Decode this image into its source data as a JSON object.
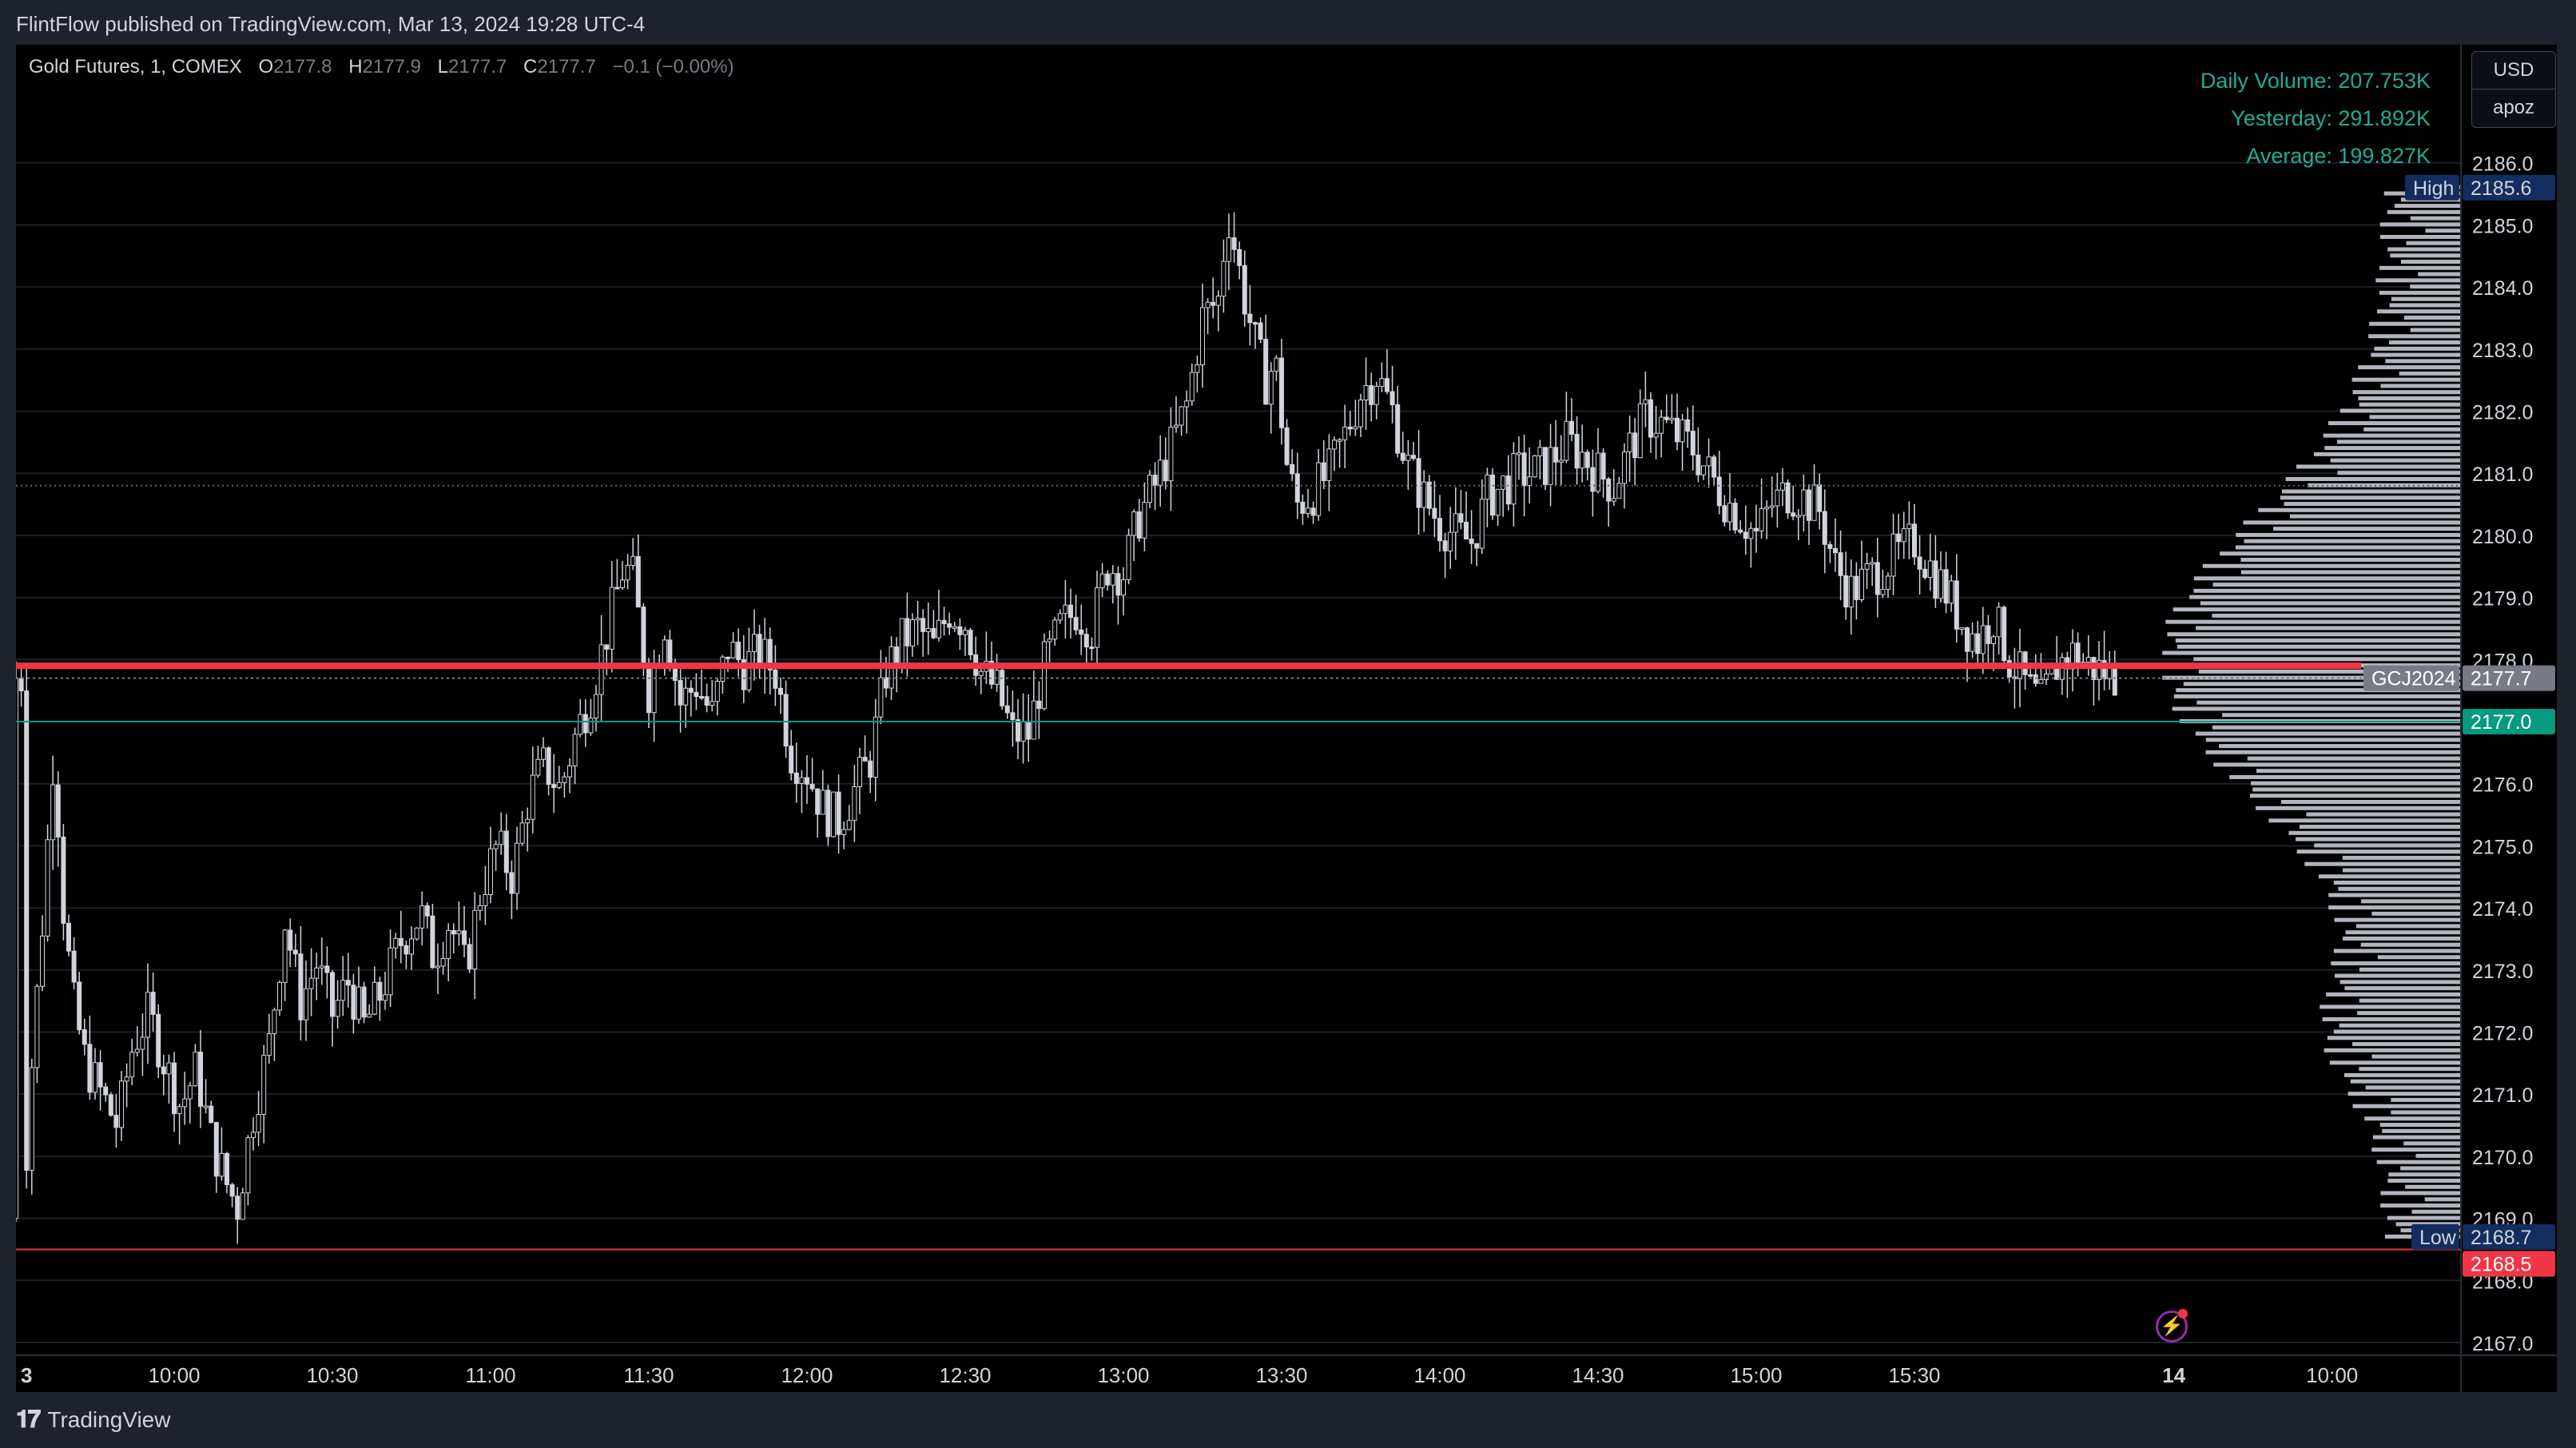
{
  "header": {
    "published_by": "FlintFlow published on TradingView.com, Mar 13, 2024 19:28 UTC-4"
  },
  "legend": {
    "symbol": "Gold Futures, 1, COMEX",
    "open_label": "O",
    "open": "2177.8",
    "high_label": "H",
    "high": "2177.9",
    "low_label": "L",
    "low": "2177.7",
    "close_label": "C",
    "close": "2177.7",
    "change": "−0.1 (−0.00%)"
  },
  "volume_stats": {
    "daily": "Daily Volume: 207.753K",
    "yesterday": "Yesterday: 291.892K",
    "average": "Average: 199.827K"
  },
  "currency_box": {
    "currency": "USD",
    "layout": "apoz"
  },
  "price_axis": {
    "ticks": [
      "2186.0",
      "2185.0",
      "2184.0",
      "2183.0",
      "2182.0",
      "2181.0",
      "2180.0",
      "2179.0",
      "2178.0",
      "2177.0",
      "2176.0",
      "2175.0",
      "2174.0",
      "2173.0",
      "2172.0",
      "2171.0",
      "2170.0",
      "2169.0",
      "2168.0",
      "2167.0"
    ]
  },
  "price_labels": {
    "high_tag": "High",
    "high_value": "2185.6",
    "symbol_tag": "GCJ2024",
    "last_value": "2177.7",
    "green_line_value": "2177.0",
    "low_tag": "Low",
    "low_value": "2168.7",
    "red_line_value": "2168.5"
  },
  "time_axis": {
    "labels": [
      "3",
      "10:00",
      "10:30",
      "11:00",
      "11:30",
      "12:00",
      "12:30",
      "13:00",
      "13:30",
      "14:00",
      "14:30",
      "15:00",
      "15:30",
      "14",
      "10:00"
    ]
  },
  "colors": {
    "background": "#000000",
    "candle": "#d1d4dc",
    "red_line": "#f23645",
    "green_line": "#089981",
    "volume_text": "#22ab94",
    "high_low_tag": "#132d5e",
    "profile_bar": "#b2b5be"
  },
  "footer": {
    "brand": "TradingView"
  },
  "chart_data": {
    "type": "candlestick",
    "symbol": "Gold Futures, 1, COMEX",
    "interval": "1 minute",
    "price_range": [
      2167.0,
      2186.0
    ],
    "session_high": 2185.6,
    "session_low": 2168.7,
    "last_price": 2177.7,
    "horizontal_levels": [
      {
        "price": 2177.9,
        "color": "red"
      },
      {
        "price": 2177.0,
        "color": "green"
      },
      {
        "price": 2168.5,
        "color": "red"
      },
      {
        "price": 2180.8,
        "color": "gray dotted"
      }
    ],
    "price_path": [
      [
        9.52,
        2169.0
      ],
      [
        9.55,
        2171.5
      ],
      [
        9.58,
        2173.5
      ],
      [
        9.62,
        2176.6
      ],
      [
        9.65,
        2174.0
      ],
      [
        9.68,
        2172.5
      ],
      [
        9.72,
        2171.5
      ],
      [
        9.77,
        2171.0
      ],
      [
        9.82,
        2170.5
      ],
      [
        9.87,
        2171.8
      ],
      [
        9.92,
        2172.3
      ],
      [
        9.97,
        2171.5
      ],
      [
        10.02,
        2170.8
      ],
      [
        10.07,
        2171.4
      ],
      [
        10.12,
        2170.2
      ],
      [
        10.17,
        2169.5
      ],
      [
        10.2,
        2169.2
      ],
      [
        10.25,
        2170.7
      ],
      [
        10.3,
        2171.8
      ],
      [
        10.35,
        2173.8
      ],
      [
        10.4,
        2172.5
      ],
      [
        10.45,
        2173.1
      ],
      [
        10.5,
        2172.3
      ],
      [
        10.55,
        2172.8
      ],
      [
        10.6,
        2172.1
      ],
      [
        10.65,
        2172.6
      ],
      [
        10.72,
        2173.5
      ],
      [
        10.78,
        2173.9
      ],
      [
        10.82,
        2173.2
      ],
      [
        10.87,
        2173.8
      ],
      [
        10.92,
        2173.0
      ],
      [
        10.97,
        2174.3
      ],
      [
        11.02,
        2175.0
      ],
      [
        11.07,
        2174.5
      ],
      [
        11.12,
        2175.8
      ],
      [
        11.17,
        2176.3
      ],
      [
        11.22,
        2175.9
      ],
      [
        11.27,
        2176.8
      ],
      [
        11.32,
        2177.5
      ],
      [
        11.37,
        2178.5
      ],
      [
        11.42,
        2179.5
      ],
      [
        11.45,
        2179.3
      ],
      [
        11.5,
        2177.5
      ],
      [
        11.55,
        2178.6
      ],
      [
        11.6,
        2177.3
      ],
      [
        11.65,
        2177.6
      ],
      [
        11.7,
        2177.1
      ],
      [
        11.75,
        2178.2
      ],
      [
        11.8,
        2177.9
      ],
      [
        11.85,
        2178.1
      ],
      [
        11.9,
        2177.8
      ],
      [
        11.95,
        2176.5
      ],
      [
        12.0,
        2176.2
      ],
      [
        12.05,
        2175.6
      ],
      [
        12.1,
        2175.4
      ],
      [
        12.15,
        2175.9
      ],
      [
        12.2,
        2176.4
      ],
      [
        12.25,
        2177.8
      ],
      [
        12.3,
        2178.3
      ],
      [
        12.35,
        2178.5
      ],
      [
        12.4,
        2178.2
      ],
      [
        12.45,
        2178.8
      ],
      [
        12.5,
        2178.6
      ],
      [
        12.55,
        2177.8
      ],
      [
        12.6,
        2177.5
      ],
      [
        12.65,
        2176.8
      ],
      [
        12.7,
        2176.8
      ],
      [
        12.75,
        2177.9
      ],
      [
        12.8,
        2178.5
      ],
      [
        12.85,
        2178.8
      ],
      [
        12.9,
        2178.5
      ],
      [
        12.95,
        2179.5
      ],
      [
        13.0,
        2179.4
      ],
      [
        13.05,
        2180.3
      ],
      [
        13.1,
        2180.8
      ],
      [
        13.15,
        2181.4
      ],
      [
        13.2,
        2182.1
      ],
      [
        13.25,
        2183.5
      ],
      [
        13.3,
        2183.8
      ],
      [
        13.33,
        2185.2
      ],
      [
        13.38,
        2183.9
      ],
      [
        13.42,
        2183.0
      ],
      [
        13.45,
        2182.5
      ],
      [
        13.48,
        2182.8
      ],
      [
        13.52,
        2181.0
      ],
      [
        13.55,
        2180.5
      ],
      [
        13.6,
        2180.7
      ],
      [
        13.65,
        2181.0
      ],
      [
        13.7,
        2181.6
      ],
      [
        13.75,
        2182.3
      ],
      [
        13.8,
        2182.6
      ],
      [
        13.85,
        2182.0
      ],
      [
        13.9,
        2181.1
      ],
      [
        13.95,
        2180.6
      ],
      [
        14.0,
        2180.2
      ],
      [
        14.05,
        2180.0
      ],
      [
        14.1,
        2179.9
      ],
      [
        14.15,
        2180.6
      ],
      [
        14.2,
        2180.8
      ],
      [
        14.25,
        2181.0
      ],
      [
        14.3,
        2181.0
      ],
      [
        14.35,
        2181.2
      ],
      [
        14.4,
        2181.5
      ],
      [
        14.45,
        2181.3
      ],
      [
        14.5,
        2181.0
      ],
      [
        14.55,
        2180.8
      ],
      [
        14.6,
        2181.4
      ],
      [
        14.65,
        2181.9
      ],
      [
        14.7,
        2181.8
      ],
      [
        14.75,
        2181.6
      ],
      [
        14.8,
        2181.4
      ],
      [
        14.85,
        2181.0
      ],
      [
        14.9,
        2180.6
      ],
      [
        14.95,
        2180.3
      ],
      [
        15.0,
        2180.0
      ],
      [
        15.05,
        2180.5
      ],
      [
        15.1,
        2180.7
      ],
      [
        15.15,
        2180.6
      ],
      [
        15.2,
        2180.4
      ],
      [
        15.25,
        2179.5
      ],
      [
        15.3,
        2179.1
      ],
      [
        15.35,
        2179.3
      ],
      [
        15.4,
        2179.5
      ],
      [
        15.45,
        2179.7
      ],
      [
        15.5,
        2179.9
      ],
      [
        15.55,
        2179.5
      ],
      [
        15.6,
        2179.1
      ],
      [
        15.65,
        2178.6
      ],
      [
        15.7,
        2178.3
      ],
      [
        15.75,
        2178.7
      ],
      [
        15.8,
        2178.0
      ],
      [
        15.85,
        2177.6
      ],
      [
        15.9,
        2177.3
      ],
      [
        15.95,
        2177.9
      ],
      [
        16.0,
        2178.1
      ],
      [
        16.05,
        2177.9
      ],
      [
        16.1,
        2177.8
      ],
      [
        16.15,
        2177.7
      ]
    ]
  }
}
